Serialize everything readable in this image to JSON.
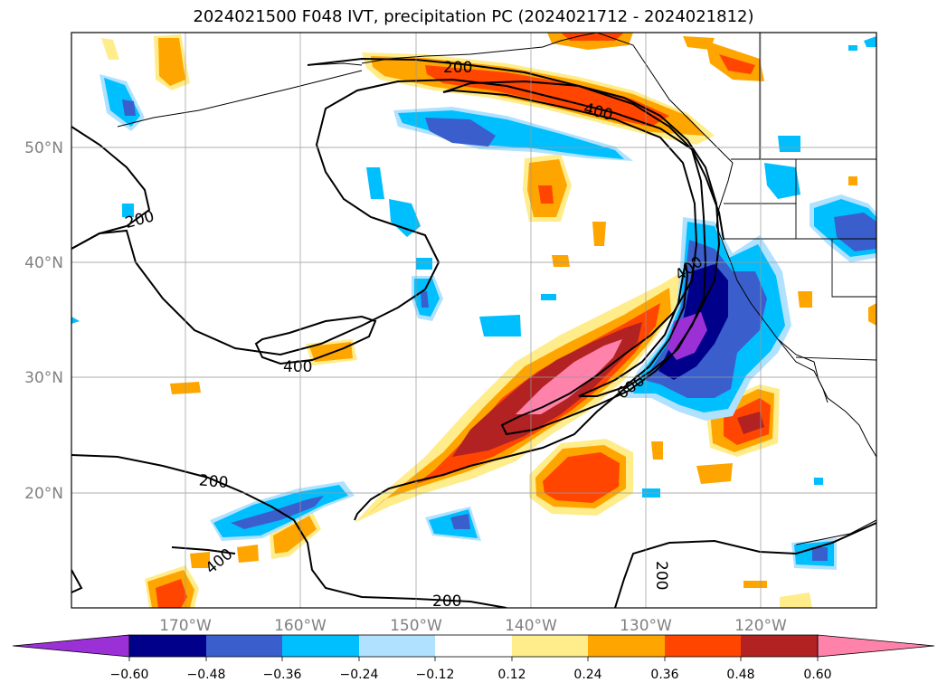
{
  "title": "2024021500 F048 IVT, precipitation PC (2024021712 - 2024021812)",
  "axes": {
    "lat_labels": [
      "50°N",
      "40°N",
      "30°N",
      "20°N"
    ],
    "lon_labels": [
      "170°W",
      "160°W",
      "150°W",
      "140°W",
      "130°W",
      "120°W"
    ]
  },
  "contour_labels": [
    "200",
    "400",
    "200",
    "400",
    "200",
    "400",
    "200",
    "200",
    "400",
    "600",
    "600"
  ],
  "colorbar": {
    "tick_labels": [
      "−0.60",
      "−0.48",
      "−0.36",
      "−0.24",
      "−0.12",
      "0.12",
      "0.24",
      "0.36",
      "0.48",
      "0.60"
    ],
    "colors": [
      "#9b30d6",
      "#00008b",
      "#3a5fcd",
      "#00bfff",
      "#b0e2ff",
      "#ffffff",
      "#ffec8b",
      "#ffa500",
      "#ff4500",
      "#b22222",
      "#ff82ab"
    ]
  },
  "shading_colors": {
    "neg_low": "#b0e2ff",
    "neg_mid": "#00bfff",
    "neg_high": "#3a5fcd",
    "neg_vhigh": "#00008b",
    "neg_max": "#9b30d6",
    "pos_low": "#ffec8b",
    "pos_mid": "#ffa500",
    "pos_high": "#ff4500",
    "pos_vhigh": "#b22222",
    "pos_max": "#ff82ab"
  }
}
